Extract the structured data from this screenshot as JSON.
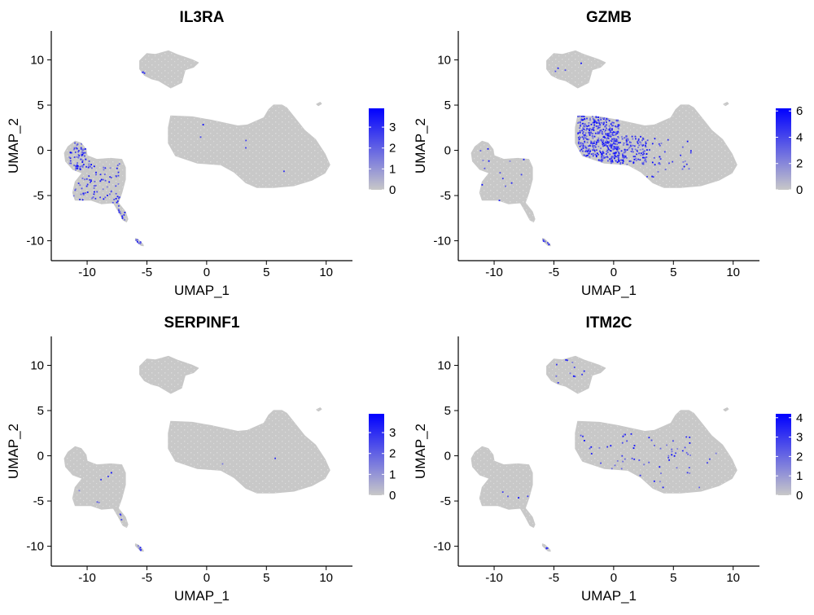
{
  "chart_data": [
    {
      "type": "scatter",
      "title": "IL3RA",
      "xlabel": "UMAP_1",
      "ylabel": "UMAP_2",
      "xlim": [
        -13,
        12.2
      ],
      "ylim": [
        -12.2,
        13.2
      ],
      "xticks": [
        -10,
        -5,
        0,
        5,
        10
      ],
      "yticks": [
        -10,
        -5,
        0,
        5,
        10
      ],
      "colorbar": {
        "min": 0,
        "max": 3.9,
        "ticks": [
          0,
          1,
          2,
          3
        ],
        "low_color": "#c8c8c8",
        "high_color": "#0000ff"
      },
      "expressing_regions": [
        {
          "x": [
            -11.5,
            -9.8
          ],
          "y": [
            -2.2,
            0.9
          ],
          "count": 60
        },
        {
          "x": [
            -11.2,
            -7.3
          ],
          "y": [
            -5.8,
            -1.5
          ],
          "count": 90
        },
        {
          "x": [
            -7.4,
            -6.7
          ],
          "y": [
            -7.8,
            -5.0
          ],
          "count": 14
        },
        {
          "x": [
            -5.9,
            -5.3
          ],
          "y": [
            -10.5,
            -9.8
          ],
          "count": 8
        },
        {
          "x": [
            -5.6,
            -5.2
          ],
          "y": [
            7.8,
            8.8
          ],
          "count": 3
        },
        {
          "x": [
            -2.0,
            9.5
          ],
          "y": [
            -3.0,
            3.2
          ],
          "count": 5
        }
      ]
    },
    {
      "type": "scatter",
      "title": "GZMB",
      "xlabel": "UMAP_1",
      "ylabel": "UMAP_2",
      "xlim": [
        -13,
        12.2
      ],
      "ylim": [
        -12.2,
        13.2
      ],
      "xticks": [
        -10,
        -5,
        0,
        5,
        10
      ],
      "yticks": [
        -10,
        -5,
        0,
        5,
        10
      ],
      "colorbar": {
        "min": 0,
        "max": 6.2,
        "ticks": [
          0,
          2,
          4,
          6
        ],
        "low_color": "#c8c8c8",
        "high_color": "#0000ff"
      },
      "expressing_regions": [
        {
          "x": [
            -3.0,
            0.5
          ],
          "y": [
            -2.0,
            3.8
          ],
          "count": 420
        },
        {
          "x": [
            0.0,
            2.8
          ],
          "y": [
            -1.6,
            1.6
          ],
          "count": 150
        },
        {
          "x": [
            2.5,
            6.5
          ],
          "y": [
            -3.0,
            1.5
          ],
          "count": 35
        },
        {
          "x": [
            -11.5,
            -7.0
          ],
          "y": [
            -5.8,
            0.5
          ],
          "count": 14
        },
        {
          "x": [
            -5.9,
            -5.3
          ],
          "y": [
            -10.5,
            -9.8
          ],
          "count": 6
        },
        {
          "x": [
            -5.0,
            -2.5
          ],
          "y": [
            8.0,
            11.0
          ],
          "count": 4
        }
      ]
    },
    {
      "type": "scatter",
      "title": "SERPINF1",
      "xlabel": "UMAP_1",
      "ylabel": "UMAP_2",
      "xlim": [
        -13,
        12.2
      ],
      "ylim": [
        -12.2,
        13.2
      ],
      "xticks": [
        -10,
        -5,
        0,
        5,
        10
      ],
      "yticks": [
        -10,
        -5,
        0,
        5,
        10
      ],
      "colorbar": {
        "min": 0,
        "max": 3.9,
        "ticks": [
          0,
          1,
          2,
          3
        ],
        "low_color": "#c8c8c8",
        "high_color": "#0000ff"
      },
      "expressing_regions": [
        {
          "x": [
            -11.0,
            -7.5
          ],
          "y": [
            -5.5,
            -1.5
          ],
          "count": 6
        },
        {
          "x": [
            -7.4,
            -6.7
          ],
          "y": [
            -7.8,
            -5.0
          ],
          "count": 3
        },
        {
          "x": [
            -5.9,
            -5.3
          ],
          "y": [
            -10.5,
            -9.8
          ],
          "count": 7
        },
        {
          "x": [
            0.0,
            10.0
          ],
          "y": [
            -1.5,
            0.5
          ],
          "count": 2
        }
      ]
    },
    {
      "type": "scatter",
      "title": "ITM2C",
      "xlabel": "UMAP_1",
      "ylabel": "UMAP_2",
      "xlim": [
        -13,
        12.2
      ],
      "ylim": [
        -12.2,
        13.2
      ],
      "xticks": [
        -10,
        -5,
        0,
        5,
        10
      ],
      "yticks": [
        -10,
        -5,
        0,
        5,
        10
      ],
      "colorbar": {
        "min": 0,
        "max": 4.2,
        "ticks": [
          0,
          1,
          2,
          3,
          4
        ],
        "low_color": "#c8c8c8",
        "high_color": "#0000ff"
      },
      "expressing_regions": [
        {
          "x": [
            -3.0,
            6.5
          ],
          "y": [
            -3.5,
            2.5
          ],
          "count": 60
        },
        {
          "x": [
            5.0,
            9.5
          ],
          "y": [
            -3.5,
            5.0
          ],
          "count": 8
        },
        {
          "x": [
            -5.0,
            -1.0
          ],
          "y": [
            8.0,
            11.0
          ],
          "count": 12
        },
        {
          "x": [
            -11.0,
            -7.0
          ],
          "y": [
            -5.5,
            -1.0
          ],
          "count": 4
        },
        {
          "x": [
            -5.7,
            -5.4
          ],
          "y": [
            -10.3,
            -9.9
          ],
          "count": 3
        }
      ]
    }
  ]
}
